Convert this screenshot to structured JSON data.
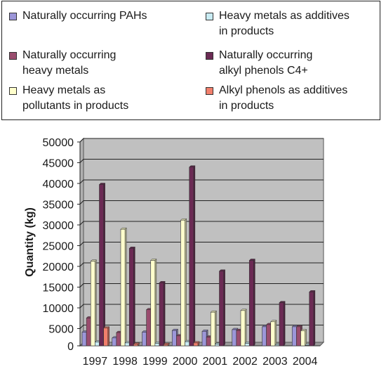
{
  "chart_data": {
    "type": "bar",
    "title": "",
    "xlabel": "",
    "ylabel": "Quantity (kg)",
    "ylim": [
      0,
      50000
    ],
    "yticks": [
      0,
      5000,
      10000,
      15000,
      20000,
      25000,
      30000,
      35000,
      40000,
      45000,
      50000
    ],
    "grid": true,
    "legend_position": "top",
    "categories": [
      "1997",
      "1998",
      "1999",
      "2000",
      "2001",
      "2002",
      "2003",
      "2004"
    ],
    "series": [
      {
        "name": "Naturally occurring PAHs",
        "color": "#9c96d8",
        "values": [
          3300,
          1900,
          3300,
          3700,
          3500,
          3900,
          4600,
          4600
        ]
      },
      {
        "name": "Naturally occurring heavy metals",
        "color": "#9a4d6e",
        "values": [
          6700,
          3200,
          8700,
          2400,
          2100,
          3700,
          5100,
          4600
        ]
      },
      {
        "name": "Heavy metals as pollutants in products",
        "color": "#ffffcc",
        "values": [
          20400,
          28100,
          20600,
          30300,
          8100,
          8500,
          5800,
          3600
        ]
      },
      {
        "name": "Heavy metals as additives in products",
        "color": "#c9ecf4",
        "values": [
          900,
          700,
          600,
          1000,
          400,
          600,
          200,
          100
        ]
      },
      {
        "name": "Naturally occurring alkyl phenols C4+",
        "color": "#6b2a54",
        "values": [
          38900,
          23500,
          15200,
          43100,
          18000,
          20600,
          10400,
          13000
        ]
      },
      {
        "name": "Alkyl phenols as additives in products",
        "color": "#f27f6c",
        "values": [
          4300,
          400,
          300,
          700,
          0,
          0,
          0,
          0
        ]
      }
    ]
  },
  "legend": {
    "items": [
      {
        "label": "Naturally occurring PAHs",
        "color": "#9c96d8"
      },
      {
        "label": "Heavy metals as additives\nin products",
        "color": "#c9ecf4"
      },
      {
        "label": "Naturally occurring\nheavy metals",
        "color": "#9a4d6e"
      },
      {
        "label": "Naturally occurring\nalkyl phenols C4+",
        "color": "#6b2a54"
      },
      {
        "label": "Heavy metals as\npollutants in products",
        "color": "#ffffcc"
      },
      {
        "label": "Alkyl phenols as additives\nin products",
        "color": "#f27f6c"
      }
    ]
  }
}
